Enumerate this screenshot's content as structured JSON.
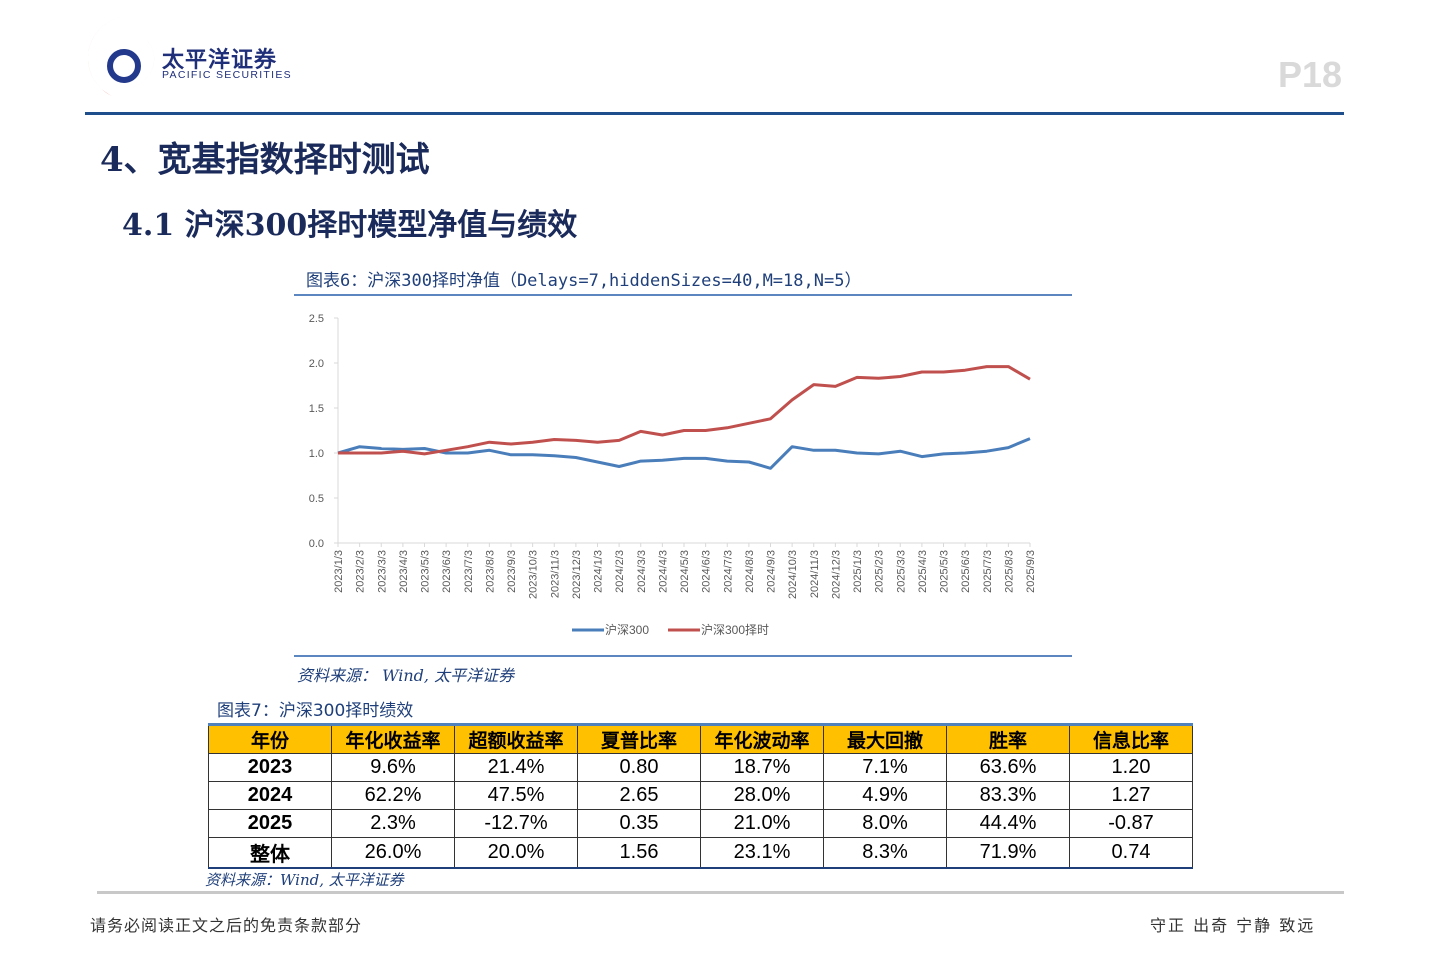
{
  "header": {
    "logo_cn": "太平洋证券",
    "logo_en": "PACIFIC SECURITIES",
    "page": "P18"
  },
  "section_title": "4、宽基指数择时测试",
  "subsection_title": "4.1 沪深300择时模型净值与绩效",
  "figure6": {
    "title": "图表6：沪深300择时净值（Delays=7,hiddenSizes=40,M=18,N=5）",
    "source": "资料来源： Wind, 太平洋证券"
  },
  "chart_data": {
    "type": "line",
    "ylim": [
      0,
      2.5
    ],
    "yticks": [
      "0.0",
      "0.5",
      "1.0",
      "1.5",
      "2.0",
      "2.5"
    ],
    "x": [
      "2023/1/3",
      "2023/2/3",
      "2023/3/3",
      "2023/4/3",
      "2023/5/3",
      "2023/6/3",
      "2023/7/3",
      "2023/8/3",
      "2023/9/3",
      "2023/10/3",
      "2023/11/3",
      "2023/12/3",
      "2024/1/3",
      "2024/2/3",
      "2024/3/3",
      "2024/4/3",
      "2024/5/3",
      "2024/6/3",
      "2024/7/3",
      "2024/8/3",
      "2024/9/3",
      "2024/10/3",
      "2024/11/3",
      "2024/12/3",
      "2025/1/3",
      "2025/2/3",
      "2025/3/3",
      "2025/4/3",
      "2025/5/3",
      "2025/6/3",
      "2025/7/3",
      "2025/8/3",
      "2025/9/3"
    ],
    "series": [
      {
        "name": "沪深300",
        "color": "#4a7ebb",
        "values": [
          1.0,
          1.07,
          1.05,
          1.04,
          1.05,
          1.0,
          1.0,
          1.03,
          0.98,
          0.98,
          0.97,
          0.95,
          0.9,
          0.85,
          0.91,
          0.92,
          0.94,
          0.94,
          0.91,
          0.9,
          0.83,
          1.07,
          1.03,
          1.03,
          1.0,
          0.99,
          1.02,
          0.96,
          0.99,
          1.0,
          1.02,
          1.06,
          1.16
        ]
      },
      {
        "name": "沪深300择时",
        "color": "#c0504d",
        "values": [
          1.0,
          1.0,
          1.0,
          1.02,
          0.99,
          1.03,
          1.07,
          1.12,
          1.1,
          1.12,
          1.15,
          1.14,
          1.12,
          1.14,
          1.24,
          1.2,
          1.25,
          1.25,
          1.28,
          1.33,
          1.38,
          1.59,
          1.76,
          1.74,
          1.84,
          1.83,
          1.85,
          1.9,
          1.9,
          1.92,
          1.96,
          1.96,
          1.82
        ]
      }
    ],
    "legend": "bottom",
    "grid": false
  },
  "figure7": {
    "title": "图表7：沪深300择时绩效",
    "columns": [
      "年份",
      "年化收益率",
      "超额收益率",
      "夏普比率",
      "年化波动率",
      "最大回撤",
      "胜率",
      "信息比率"
    ],
    "rows": [
      [
        "2023",
        "9.6%",
        "21.4%",
        "0.80",
        "18.7%",
        "7.1%",
        "63.6%",
        "1.20"
      ],
      [
        "2024",
        "62.2%",
        "47.5%",
        "2.65",
        "28.0%",
        "4.9%",
        "83.3%",
        "1.27"
      ],
      [
        "2025",
        "2.3%",
        "-12.7%",
        "0.35",
        "21.0%",
        "8.0%",
        "44.4%",
        "-0.87"
      ],
      [
        "整体",
        "26.0%",
        "20.0%",
        "1.56",
        "23.1%",
        "8.3%",
        "71.9%",
        "0.74"
      ]
    ],
    "source": "资料来源：Wind, 太平洋证券"
  },
  "footer": {
    "disclaimer": "请务必阅读正文之后的免责条款部分",
    "motto": "守正 出奇 宁静 致远"
  }
}
